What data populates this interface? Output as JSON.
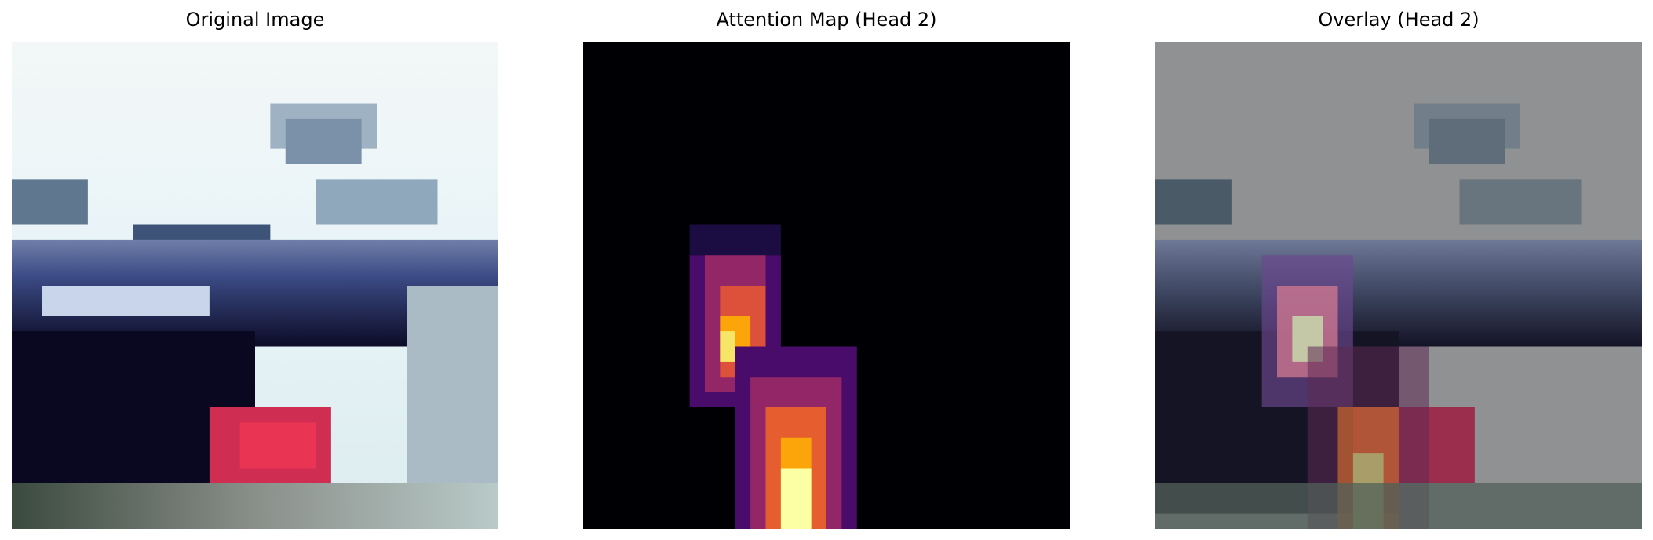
{
  "figure": {
    "panels": [
      {
        "title": "Original Image",
        "description_icon": "original-image"
      },
      {
        "title": "Attention Map (Head 2)",
        "description_icon": "heatmap"
      },
      {
        "title": "Overlay (Head 2)",
        "description_icon": "overlay-image"
      }
    ],
    "colors": {
      "background": "#ffffff",
      "attention_low": "#000004",
      "attention_mid": "#b63679",
      "attention_high": "#fcffa4",
      "overlay_gray": "#8f9192"
    }
  }
}
